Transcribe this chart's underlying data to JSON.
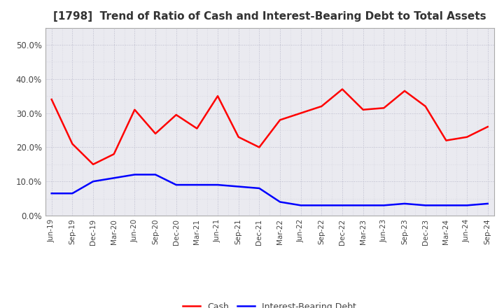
{
  "title": "[1798]  Trend of Ratio of Cash and Interest-Bearing Debt to Total Assets",
  "x_labels": [
    "Jun-19",
    "Sep-19",
    "Dec-19",
    "Mar-20",
    "Jun-20",
    "Sep-20",
    "Dec-20",
    "Mar-21",
    "Jun-21",
    "Sep-21",
    "Dec-21",
    "Mar-22",
    "Jun-22",
    "Sep-22",
    "Dec-22",
    "Mar-23",
    "Jun-23",
    "Sep-23",
    "Dec-23",
    "Mar-24",
    "Jun-24",
    "Sep-24"
  ],
  "cash": [
    0.34,
    0.21,
    0.15,
    0.18,
    0.31,
    0.24,
    0.295,
    0.255,
    0.35,
    0.23,
    0.2,
    0.28,
    0.3,
    0.32,
    0.37,
    0.31,
    0.315,
    0.365,
    0.32,
    0.22,
    0.23,
    0.26
  ],
  "debt": [
    0.065,
    0.065,
    0.1,
    0.11,
    0.12,
    0.12,
    0.09,
    0.09,
    0.09,
    0.085,
    0.08,
    0.04,
    0.03,
    0.03,
    0.03,
    0.03,
    0.03,
    0.035,
    0.03,
    0.03,
    0.03,
    0.035
  ],
  "cash_color": "#FF0000",
  "debt_color": "#0000FF",
  "ylim": [
    0.0,
    0.55
  ],
  "yticks": [
    0.0,
    0.1,
    0.2,
    0.3,
    0.4,
    0.5
  ],
  "plot_bg_color": "#EAEAF0",
  "fig_bg_color": "#FFFFFF",
  "grid_color": "#BBBBCC",
  "title_fontsize": 11,
  "title_color": "#333333",
  "tick_color": "#444444",
  "legend_labels": [
    "Cash",
    "Interest-Bearing Debt"
  ]
}
